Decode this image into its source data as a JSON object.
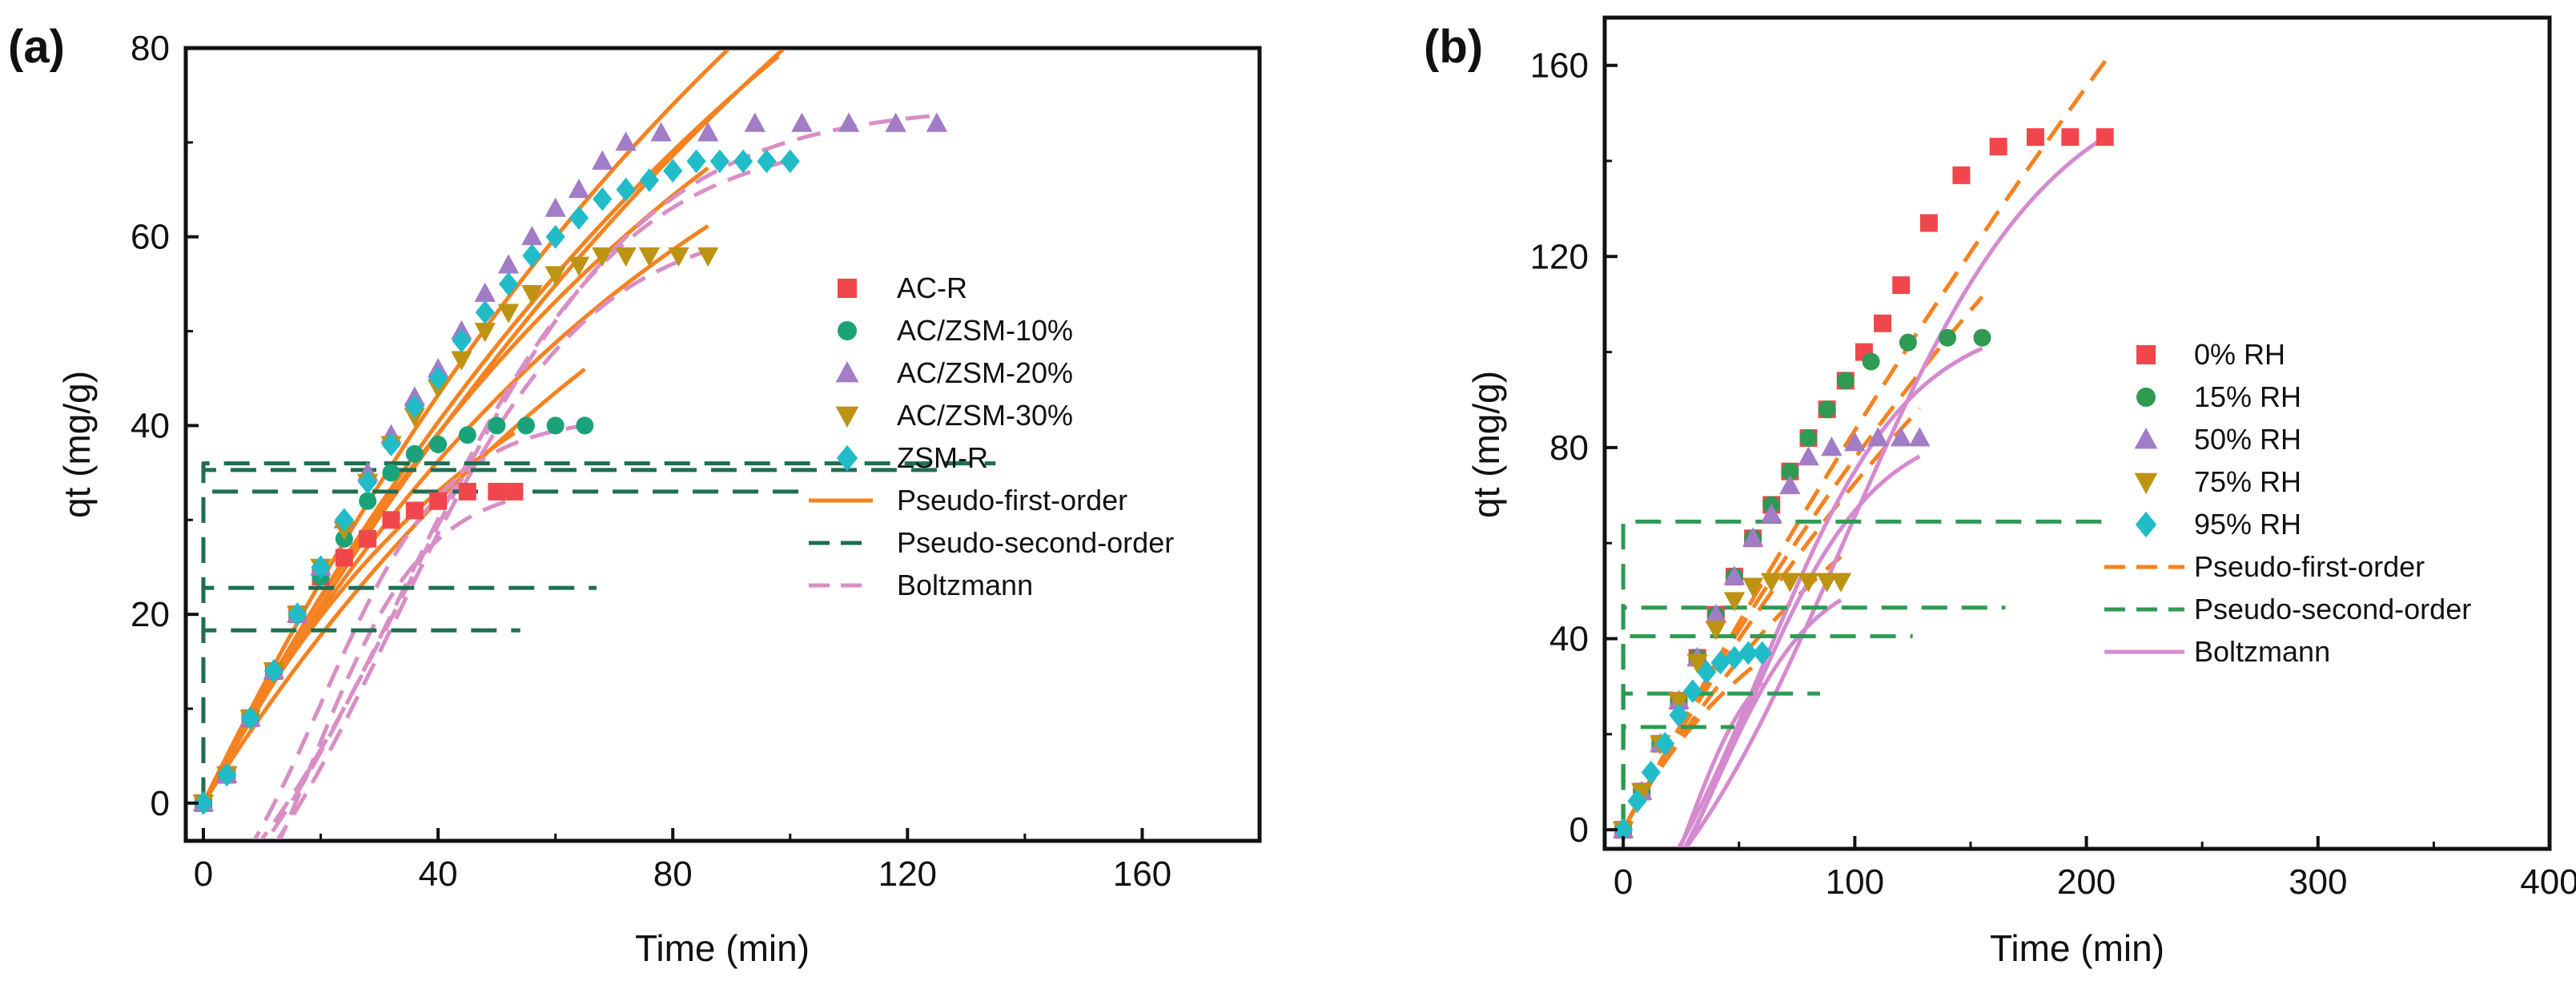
{
  "colors": {
    "red": "#f0474c",
    "green": "#1aa37a",
    "purple": "#a27cc6",
    "gold": "#bd9312",
    "cyan": "#21bcc8",
    "orange": "#f58220",
    "darkgreen": "#1f6e52",
    "pink": "#d98ec5",
    "greenB": "#2e9a52",
    "pinkB": "#d58ad0"
  },
  "chart_data": [
    {
      "panel_label": "(a)",
      "type": "scatter",
      "xlabel": "Time (min)",
      "ylabel": "qt (mg/g)",
      "xlim": [
        -3,
        180
      ],
      "ylim": [
        -4,
        80
      ],
      "xticks": [
        0,
        40,
        80,
        120,
        160
      ],
      "yticks": [
        0,
        20,
        40,
        60,
        80
      ],
      "legend_position": "right",
      "series": [
        {
          "name": "AC-R",
          "marker": "square",
          "color": "red",
          "points": [
            [
              0,
              0
            ],
            [
              4,
              3
            ],
            [
              8,
              9
            ],
            [
              12,
              14
            ],
            [
              16,
              20
            ],
            [
              20,
              24
            ],
            [
              24,
              26
            ],
            [
              28,
              28
            ],
            [
              32,
              30
            ],
            [
              36,
              31
            ],
            [
              40,
              32
            ],
            [
              45,
              33
            ],
            [
              50,
              33
            ],
            [
              53,
              33
            ]
          ]
        },
        {
          "name": "AC/ZSM-10%",
          "marker": "circle",
          "color": "green",
          "points": [
            [
              0,
              0
            ],
            [
              4,
              3
            ],
            [
              8,
              9
            ],
            [
              12,
              14
            ],
            [
              16,
              20
            ],
            [
              20,
              24
            ],
            [
              24,
              28
            ],
            [
              28,
              32
            ],
            [
              32,
              35
            ],
            [
              36,
              37
            ],
            [
              40,
              38
            ],
            [
              45,
              39
            ],
            [
              50,
              40
            ],
            [
              55,
              40
            ],
            [
              60,
              40
            ],
            [
              65,
              40
            ]
          ]
        },
        {
          "name": "AC/ZSM-20%",
          "marker": "triangle-up",
          "color": "purple",
          "points": [
            [
              0,
              0
            ],
            [
              4,
              3
            ],
            [
              8,
              9
            ],
            [
              12,
              14
            ],
            [
              16,
              20
            ],
            [
              20,
              25
            ],
            [
              24,
              30
            ],
            [
              28,
              35
            ],
            [
              32,
              39
            ],
            [
              36,
              43
            ],
            [
              40,
              46
            ],
            [
              44,
              50
            ],
            [
              48,
              54
            ],
            [
              52,
              57
            ],
            [
              56,
              60
            ],
            [
              60,
              63
            ],
            [
              64,
              65
            ],
            [
              68,
              68
            ],
            [
              72,
              70
            ],
            [
              78,
              71
            ],
            [
              86,
              71
            ],
            [
              94,
              72
            ],
            [
              102,
              72
            ],
            [
              110,
              72
            ],
            [
              118,
              72
            ],
            [
              125,
              72
            ]
          ]
        },
        {
          "name": "AC/ZSM-30%",
          "marker": "triangle-down",
          "color": "gold",
          "points": [
            [
              0,
              0
            ],
            [
              4,
              3
            ],
            [
              8,
              9
            ],
            [
              12,
              14
            ],
            [
              16,
              20
            ],
            [
              20,
              25
            ],
            [
              24,
              29
            ],
            [
              28,
              34
            ],
            [
              32,
              38
            ],
            [
              36,
              41
            ],
            [
              40,
              44
            ],
            [
              44,
              47
            ],
            [
              48,
              50
            ],
            [
              52,
              52
            ],
            [
              56,
              54
            ],
            [
              60,
              56
            ],
            [
              64,
              57
            ],
            [
              68,
              58
            ],
            [
              72,
              58
            ],
            [
              76,
              58
            ],
            [
              81,
              58
            ],
            [
              86,
              58
            ]
          ]
        },
        {
          "name": "ZSM-R",
          "marker": "diamond",
          "color": "cyan",
          "points": [
            [
              0,
              0
            ],
            [
              4,
              3
            ],
            [
              8,
              9
            ],
            [
              12,
              14
            ],
            [
              16,
              20
            ],
            [
              20,
              25
            ],
            [
              24,
              30
            ],
            [
              28,
              34
            ],
            [
              32,
              38
            ],
            [
              36,
              42
            ],
            [
              40,
              45
            ],
            [
              44,
              49
            ],
            [
              48,
              52
            ],
            [
              52,
              55
            ],
            [
              56,
              58
            ],
            [
              60,
              60
            ],
            [
              64,
              62
            ],
            [
              68,
              64
            ],
            [
              72,
              65
            ],
            [
              76,
              66
            ],
            [
              80,
              67
            ],
            [
              84,
              68
            ],
            [
              88,
              68
            ],
            [
              92,
              68
            ],
            [
              96,
              68
            ],
            [
              100,
              68
            ]
          ]
        }
      ],
      "fit_series": [
        {
          "name": "Pseudo-first-order",
          "style": "solid",
          "color": "orange",
          "legend": true
        },
        {
          "name": "Pseudo-second-order",
          "style": "dash",
          "color": "darkgreen",
          "legend": true
        },
        {
          "name": "Boltzmann",
          "style": "dash",
          "color": "pink",
          "legend": true
        }
      ],
      "fit_curves": [
        {
          "kind": "pfo",
          "qe": 60,
          "k": 0.02,
          "xmax": 53,
          "color": "orange"
        },
        {
          "kind": "pfo",
          "qe": 90,
          "k": 0.011,
          "xmax": 65,
          "color": "orange"
        },
        {
          "kind": "pfo",
          "qe": 150,
          "k": 0.0085,
          "xmax": 125,
          "color": "orange"
        },
        {
          "kind": "pfo",
          "qe": 110,
          "k": 0.011,
          "xmax": 86,
          "color": "orange"
        },
        {
          "kind": "pfo",
          "qe": 160,
          "k": 0.007,
          "xmax": 100,
          "color": "orange"
        },
        {
          "kind": "pfo",
          "qe": 140,
          "k": 0.0085,
          "xmax": 98,
          "color": "orange"
        },
        {
          "kind": "pfo",
          "qe": 95,
          "k": 0.012,
          "xmax": 86,
          "color": "orange"
        },
        {
          "kind": "boltz",
          "A1": -27,
          "A2": 34,
          "x0": 18,
          "dx": 10,
          "xmax": 53,
          "color": "pink"
        },
        {
          "kind": "boltz",
          "A1": -20,
          "A2": 41,
          "x0": 20,
          "dx": 11,
          "xmax": 65,
          "color": "pink"
        },
        {
          "kind": "boltz",
          "A1": -25,
          "A2": 74,
          "x0": 36,
          "dx": 20,
          "xmax": 125,
          "color": "pink"
        },
        {
          "kind": "boltz",
          "A1": -25,
          "A2": 62,
          "x0": 32,
          "dx": 17,
          "xmax": 86,
          "color": "pink"
        },
        {
          "kind": "boltz",
          "A1": -26,
          "A2": 71,
          "x0": 34,
          "dx": 19,
          "xmax": 100,
          "color": "pink"
        },
        {
          "kind": "step",
          "y": 18.3,
          "xmax": 54,
          "color": "darkgreen"
        },
        {
          "kind": "step",
          "y": 22.8,
          "xmax": 67,
          "color": "darkgreen"
        },
        {
          "kind": "step",
          "y": 33.0,
          "xmax": 102,
          "color": "darkgreen"
        },
        {
          "kind": "step",
          "y": 35.3,
          "xmax": 125,
          "color": "darkgreen"
        },
        {
          "kind": "step",
          "y": 36.0,
          "xmax": 135,
          "color": "darkgreen"
        }
      ]
    },
    {
      "panel_label": "(b)",
      "type": "scatter",
      "xlabel": "Time (min)",
      "ylabel": "qt (mg/g)",
      "xlim": [
        -8,
        400
      ],
      "ylim": [
        -4,
        170
      ],
      "xticks": [
        0,
        100,
        200,
        300,
        400
      ],
      "yticks": [
        0,
        40,
        80,
        120,
        160
      ],
      "legend_position": "right",
      "series": [
        {
          "name": " 0%  RH",
          "marker": "square",
          "color": "red",
          "points": [
            [
              0,
              0
            ],
            [
              8,
              8
            ],
            [
              16,
              18
            ],
            [
              24,
              27
            ],
            [
              32,
              36
            ],
            [
              40,
              45
            ],
            [
              48,
              53
            ],
            [
              56,
              61
            ],
            [
              64,
              68
            ],
            [
              72,
              75
            ],
            [
              80,
              82
            ],
            [
              88,
              88
            ],
            [
              96,
              94
            ],
            [
              104,
              100
            ],
            [
              112,
              106
            ],
            [
              120,
              114
            ],
            [
              132,
              127
            ],
            [
              146,
              137
            ],
            [
              162,
              143
            ],
            [
              178,
              145
            ],
            [
              193,
              145
            ],
            [
              208,
              145
            ]
          ]
        },
        {
          "name": "15% RH",
          "marker": "circle",
          "color": "greenB",
          "points": [
            [
              0,
              0
            ],
            [
              8,
              8
            ],
            [
              16,
              18
            ],
            [
              24,
              27
            ],
            [
              32,
              36
            ],
            [
              40,
              45
            ],
            [
              48,
              53
            ],
            [
              56,
              61
            ],
            [
              64,
              68
            ],
            [
              72,
              75
            ],
            [
              80,
              82
            ],
            [
              88,
              88
            ],
            [
              96,
              94
            ],
            [
              107,
              98
            ],
            [
              123,
              102
            ],
            [
              140,
              103
            ],
            [
              155,
              103
            ]
          ]
        },
        {
          "name": "50% RH",
          "marker": "triangle-up",
          "color": "purple",
          "points": [
            [
              0,
              0
            ],
            [
              8,
              8
            ],
            [
              16,
              18
            ],
            [
              24,
              27
            ],
            [
              32,
              36
            ],
            [
              40,
              45
            ],
            [
              48,
              53
            ],
            [
              56,
              61
            ],
            [
              64,
              66
            ],
            [
              72,
              72
            ],
            [
              80,
              78
            ],
            [
              90,
              80
            ],
            [
              100,
              81
            ],
            [
              110,
              82
            ],
            [
              120,
              82
            ],
            [
              128,
              82
            ]
          ]
        },
        {
          "name": "75% RH",
          "marker": "triangle-down",
          "color": "gold",
          "points": [
            [
              0,
              0
            ],
            [
              8,
              8
            ],
            [
              16,
              18
            ],
            [
              24,
              27
            ],
            [
              32,
              35
            ],
            [
              40,
              42
            ],
            [
              48,
              48
            ],
            [
              56,
              51
            ],
            [
              64,
              52
            ],
            [
              72,
              52
            ],
            [
              80,
              52
            ],
            [
              88,
              52
            ],
            [
              94,
              52
            ]
          ]
        },
        {
          "name": "95% RH",
          "marker": "diamond",
          "color": "cyan",
          "points": [
            [
              0,
              0
            ],
            [
              6,
              6
            ],
            [
              12,
              12
            ],
            [
              18,
              18
            ],
            [
              24,
              24
            ],
            [
              30,
              29
            ],
            [
              36,
              33
            ],
            [
              42,
              35
            ],
            [
              48,
              36
            ],
            [
              54,
              37
            ],
            [
              60,
              37
            ]
          ]
        }
      ],
      "fit_series": [
        {
          "name": "Pseudo-first-order",
          "style": "dash",
          "color": "orange",
          "legend": true
        },
        {
          "name": "Pseudo-second-order",
          "style": "dash",
          "color": "greenB",
          "legend": true
        },
        {
          "name": "Boltzmann",
          "style": "solid",
          "color": "pinkB",
          "legend": true
        }
      ],
      "fit_curves": [
        {
          "kind": "pfo",
          "qe": 600,
          "k": 0.0015,
          "xmax": 210,
          "color": "orange"
        },
        {
          "kind": "pfo",
          "qe": 300,
          "k": 0.003,
          "xmax": 155,
          "color": "orange"
        },
        {
          "kind": "pfo",
          "qe": 220,
          "k": 0.004,
          "xmax": 128,
          "color": "orange"
        },
        {
          "kind": "pfo",
          "qe": 110,
          "k": 0.0078,
          "xmax": 94,
          "color": "orange"
        },
        {
          "kind": "pfo",
          "qe": 60,
          "k": 0.015,
          "xmax": 60,
          "color": "orange"
        },
        {
          "kind": "boltz",
          "A1": -40,
          "A2": 160,
          "x0": 95,
          "dx": 45,
          "xmax": 210,
          "color": "pinkB"
        },
        {
          "kind": "boltz",
          "A1": -40,
          "A2": 108,
          "x0": 60,
          "dx": 32,
          "xmax": 155,
          "color": "pinkB"
        },
        {
          "kind": "boltz",
          "A1": -40,
          "A2": 86,
          "x0": 52,
          "dx": 28,
          "xmax": 128,
          "color": "pinkB"
        },
        {
          "kind": "boltz",
          "A1": -40,
          "A2": 55,
          "x0": 38,
          "dx": 22,
          "xmax": 94,
          "color": "pinkB"
        },
        {
          "kind": "boltz",
          "A1": -38,
          "A2": 39,
          "x0": 28,
          "dx": 15,
          "xmax": 60,
          "color": "pinkB"
        },
        {
          "kind": "step",
          "y": 21.5,
          "xmax": 48,
          "color": "greenB"
        },
        {
          "kind": "step",
          "y": 28.5,
          "xmax": 85,
          "color": "greenB"
        },
        {
          "kind": "step",
          "y": 40.5,
          "xmax": 125,
          "color": "greenB"
        },
        {
          "kind": "step",
          "y": 46.5,
          "xmax": 165,
          "color": "greenB"
        },
        {
          "kind": "step",
          "y": 64.5,
          "xmax": 210,
          "color": "greenB"
        }
      ]
    }
  ]
}
